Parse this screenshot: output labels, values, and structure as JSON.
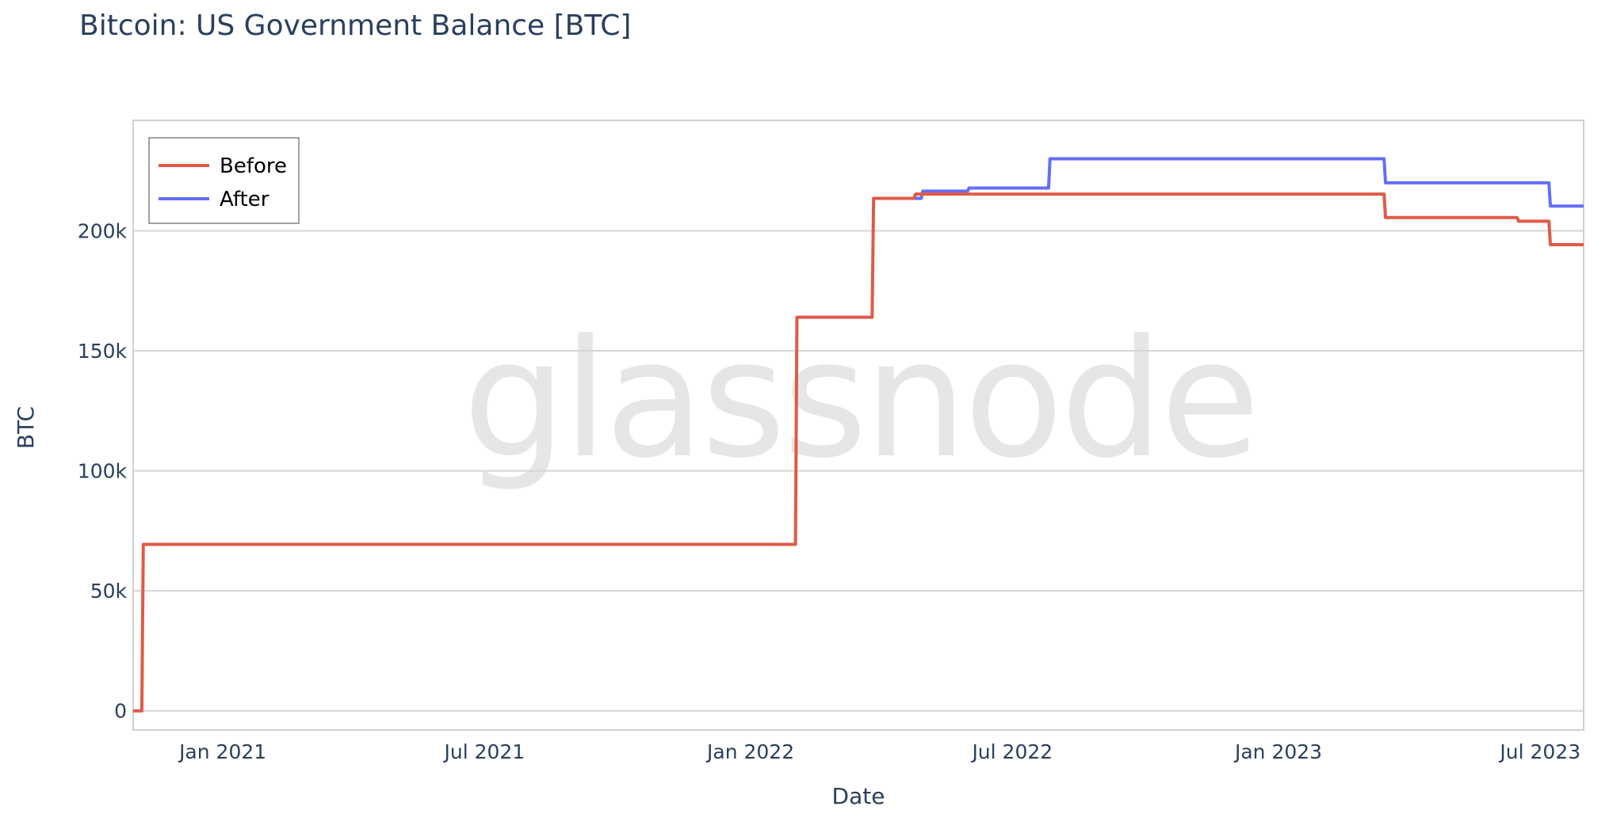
{
  "chart_data": {
    "type": "line",
    "title": "Bitcoin: US Government Balance [BTC]",
    "xlabel": "Date",
    "ylabel": "BTC",
    "watermark": "glassnode",
    "x_range": [
      "2020-10-31",
      "2023-07-31"
    ],
    "ylim": [
      -8000,
      246000
    ],
    "y_ticks": [
      0,
      50000,
      100000,
      150000,
      200000
    ],
    "y_tick_labels": [
      "0",
      "50k",
      "100k",
      "150k",
      "200k"
    ],
    "x_ticks": [
      "2021-01-01",
      "2021-07-01",
      "2022-01-01",
      "2022-07-01",
      "2023-01-01",
      "2023-07-01"
    ],
    "x_tick_labels": [
      "Jan 2021",
      "Jul 2021",
      "Jan 2022",
      "Jul 2022",
      "Jan 2023",
      "Jul 2023"
    ],
    "grid": true,
    "legend_position": "top-left",
    "series": [
      {
        "name": "Before",
        "color": "#e05a47",
        "points": [
          [
            "2020-10-31",
            0
          ],
          [
            "2020-11-06",
            0
          ],
          [
            "2020-11-07",
            69370
          ],
          [
            "2022-02-01",
            69370
          ],
          [
            "2022-02-02",
            164000
          ],
          [
            "2022-03-26",
            164000
          ],
          [
            "2022-03-27",
            213500
          ],
          [
            "2022-04-24",
            213500
          ],
          [
            "2022-04-25",
            215300
          ],
          [
            "2022-04-30",
            215300
          ],
          [
            "2022-05-01",
            215300
          ],
          [
            "2023-03-15",
            215300
          ],
          [
            "2023-03-16",
            205500
          ],
          [
            "2023-06-15",
            205500
          ],
          [
            "2023-06-16",
            204000
          ],
          [
            "2023-07-07",
            204000
          ],
          [
            "2023-07-08",
            194200
          ],
          [
            "2023-07-31",
            194200
          ]
        ]
      },
      {
        "name": "After",
        "color": "#636efa",
        "points": [
          [
            "2022-04-24",
            213500
          ],
          [
            "2022-04-29",
            213500
          ],
          [
            "2022-04-30",
            216500
          ],
          [
            "2022-05-31",
            216500
          ],
          [
            "2022-06-01",
            217800
          ],
          [
            "2022-07-26",
            217800
          ],
          [
            "2022-07-27",
            230000
          ],
          [
            "2023-03-15",
            230000
          ],
          [
            "2023-03-16",
            220000
          ],
          [
            "2023-07-07",
            220000
          ],
          [
            "2023-07-08",
            210300
          ],
          [
            "2023-07-31",
            210300
          ]
        ]
      }
    ]
  }
}
